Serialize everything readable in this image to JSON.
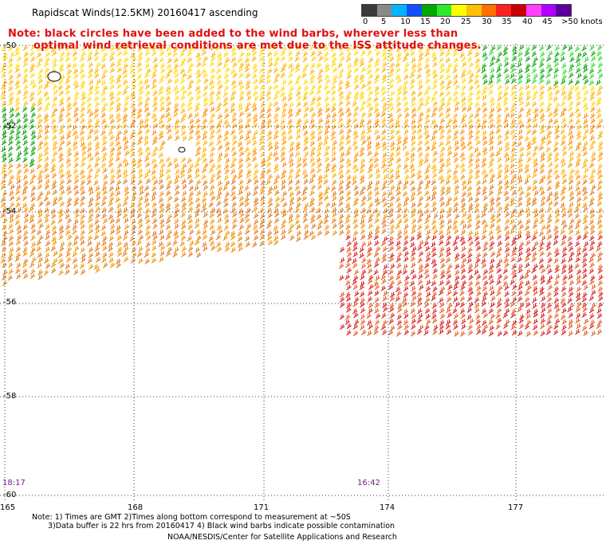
{
  "header": {
    "title": "Rapidscat Winds(12.5KM) 20160417 ascending"
  },
  "note": {
    "line1": "Note: black circles have been added to the wind barbs, wherever less than",
    "line2": "optimal wind retrieval conditions are met due to the ISS attitude changes."
  },
  "speed_scale": {
    "labels": [
      "0",
      "5",
      "10",
      "15",
      "20",
      "25",
      "30",
      "35",
      "40",
      "45",
      ">50 knots"
    ],
    "colors": [
      "#3a3a3a",
      "#8a8a8a",
      "#00b4ff",
      "#1050ff",
      "#00a800",
      "#2ee82e",
      "#ffff00",
      "#ffc000",
      "#ff7000",
      "#ff2020",
      "#c80000",
      "#ff40ff",
      "#b000ff",
      "#5a00a0"
    ]
  },
  "map": {
    "lat_labels": [
      "-50",
      "-52",
      "-54",
      "-56",
      "-58",
      "-60"
    ],
    "lon_labels": [
      "165",
      "168",
      "171",
      "174",
      "177"
    ],
    "time_left": "18:17",
    "time_right": "16:42"
  },
  "footer": {
    "line1": "Note: 1) Times are GMT 2)Times along bottom correspond to measurement at ~50S",
    "line2": "3)Data buffer is 22 hrs from 20160417 4) Black wind barbs indicate possible contamination",
    "line3": "NOAA/NESDIS/Center for Satellite Applications and Research"
  }
}
